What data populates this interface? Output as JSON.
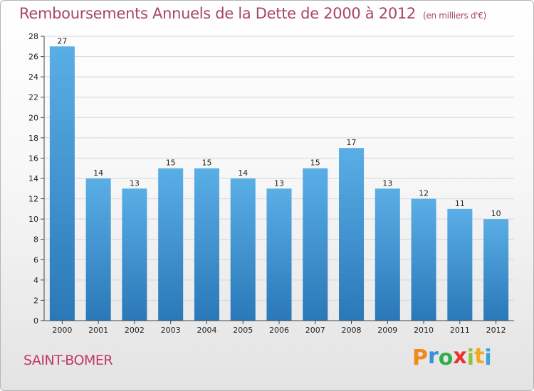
{
  "chart_data": {
    "type": "bar",
    "title": "Remboursements Annuels de la Dette de 2000 à 2012",
    "subtitle": "(en milliers d'€)",
    "categories": [
      "2000",
      "2001",
      "2002",
      "2003",
      "2004",
      "2005",
      "2006",
      "2007",
      "2008",
      "2009",
      "2010",
      "2011",
      "2012"
    ],
    "values": [
      27,
      14,
      13,
      15,
      15,
      14,
      13,
      15,
      17,
      13,
      12,
      11,
      10
    ],
    "ylim": [
      0,
      28
    ],
    "yticks": [
      0,
      2,
      4,
      6,
      8,
      10,
      12,
      14,
      16,
      18,
      20,
      22,
      24,
      26,
      28
    ],
    "grid": true,
    "legend": "none",
    "bar_color_top": "#5aaee6",
    "bar_color_bottom": "#2a78b8"
  },
  "footer": {
    "place": "SAINT-BOMER",
    "logo_letters": [
      "P",
      "r",
      "o",
      "x",
      "i",
      "t",
      "i"
    ],
    "logo_colors": [
      "#f08a1c",
      "#3a8fd8",
      "#2fae4a",
      "#e8332a",
      "#8fc23c",
      "#f2a922",
      "#3aa3d8"
    ]
  }
}
